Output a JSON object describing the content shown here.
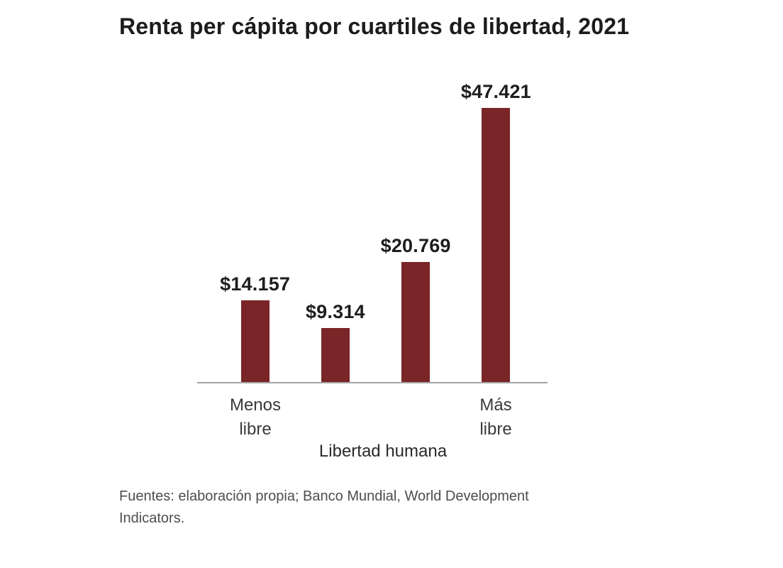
{
  "title": "Renta per cápita por cuartiles de libertad, 2021",
  "chart_data": {
    "type": "bar",
    "title": "Renta per cápita por cuartiles de libertad, 2021",
    "categories": [
      "Menos libre",
      "",
      "",
      "Más libre"
    ],
    "values": [
      14157,
      9314,
      20769,
      47421
    ],
    "value_labels": [
      "$14.157",
      "$9.314",
      "$20.769",
      "$47.421"
    ],
    "visible_tick_labels": [
      "Menos\nlibre",
      "Más\nlibre"
    ],
    "xlabel": "Libertad humana",
    "ylabel": "",
    "ylim": [
      0,
      47421
    ],
    "bar_color": "#7a2527",
    "axis_line_color": "#a3a3a3",
    "grid": false,
    "legend": "none",
    "source_note": "Fuentes: elaboración propia; Banco Mundial, World Development Indicators."
  }
}
